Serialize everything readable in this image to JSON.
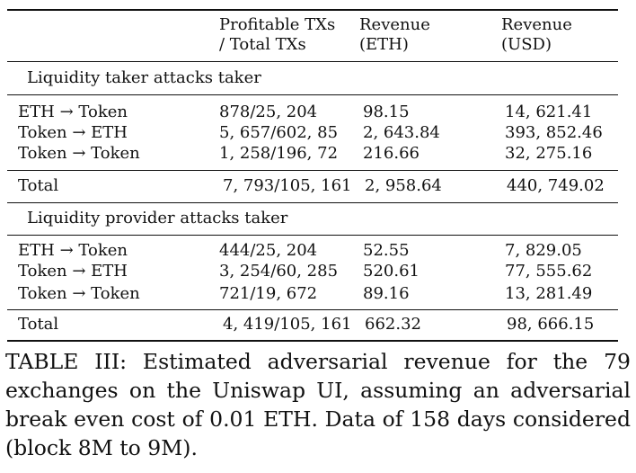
{
  "table": {
    "headers": {
      "col2_line1": "Profitable TXs",
      "col2_line2": "/ Total TXs",
      "col3_line1": "Revenue",
      "col3_line2": "(ETH)",
      "col4_line1": "Revenue",
      "col4_line2": "(USD)"
    },
    "sections": [
      {
        "title": "Liquidity taker attacks taker",
        "rows": [
          {
            "label": "ETH → Token",
            "txs": "878/25, 204",
            "eth": "98.15",
            "usd": "14, 621.41"
          },
          {
            "label": "Token → ETH",
            "txs": "5, 657/602, 85",
            "eth": "2, 643.84",
            "usd": "393, 852.46"
          },
          {
            "label": "Token → Token",
            "txs": "1, 258/196, 72",
            "eth": "216.66",
            "usd": "32, 275.16"
          }
        ],
        "total": {
          "label": "Total",
          "txs": "7, 793/105, 161",
          "eth": "2, 958.64",
          "usd": "440, 749.02"
        }
      },
      {
        "title": "Liquidity provider attacks taker",
        "rows": [
          {
            "label": "ETH → Token",
            "txs": "444/25, 204",
            "eth": "52.55",
            "usd": "7, 829.05"
          },
          {
            "label": "Token → ETH",
            "txs": "3, 254/60, 285",
            "eth": "520.61",
            "usd": "77, 555.62"
          },
          {
            "label": "Token → Token",
            "txs": "721/19, 672",
            "eth": "89.16",
            "usd": "13, 281.49"
          }
        ],
        "total": {
          "label": "Total",
          "txs": "4, 419/105, 161",
          "eth": "662.32",
          "usd": "98, 666.15"
        }
      }
    ]
  },
  "caption": "TABLE III: Estimated adversarial revenue for the 79 exchanges on the Uniswap UI, assuming an adversarial break even cost of 0.01 ETH. Data of 158 days considered (block 8M to 9M)."
}
